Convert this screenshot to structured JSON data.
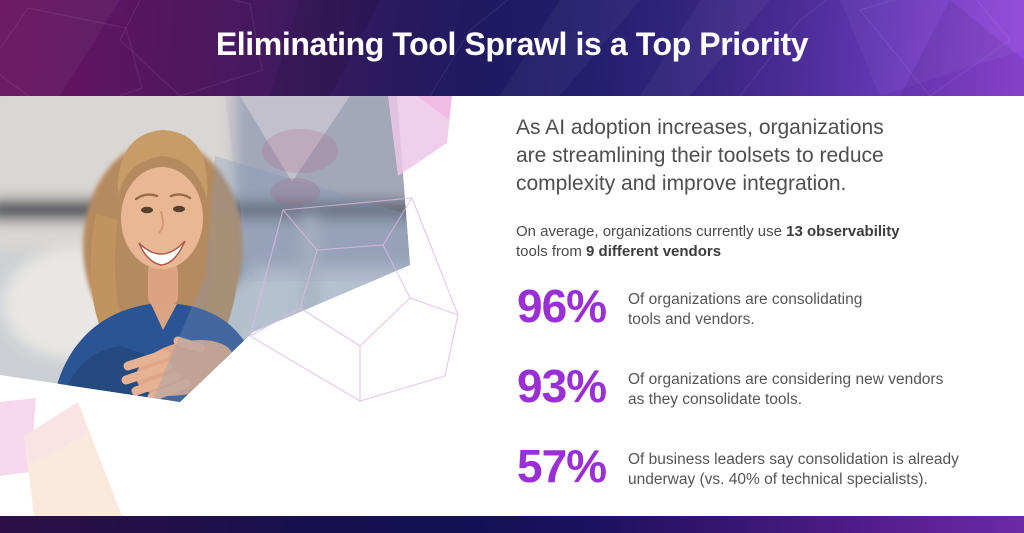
{
  "header": {
    "title": "Eliminating Tool Sprawl is a Top Priority"
  },
  "photo": {
    "alt": "Smiling woman with shoulder-length light brown hair wearing a blue top, blurred office window background with polygonal overlay"
  },
  "content": {
    "intro_lines": [
      "As AI adoption increases, organizations",
      "are streamlining their toolsets to reduce",
      "complexity and improve integration."
    ],
    "average_line1": [
      {
        "t": "On average, organizations currently use ",
        "b": false
      },
      {
        "t": "13 observability",
        "b": true
      }
    ],
    "average_line2": [
      {
        "t": "tools from ",
        "b": false
      },
      {
        "t": "9 different vendors",
        "b": true
      }
    ],
    "stats": [
      {
        "value": "96%",
        "lines": [
          "Of organizations are consolidating",
          "tools and vendors."
        ]
      },
      {
        "value": "93%",
        "lines": [
          "Of organizations are considering new vendors",
          "as they consolidate tools."
        ]
      },
      {
        "value": "57%",
        "lines": [
          "Of business leaders say consolidation is already",
          "underway (vs. 40% of technical specialists)."
        ]
      }
    ]
  },
  "colors": {
    "accent_purple": "#9B2FD6",
    "body_text": "#4E4E4E",
    "stat_desc_text": "#555555",
    "header_gradient_left": "#67125E",
    "header_gradient_middle": "#1F1A61",
    "header_gradient_right": "#9147DB",
    "bottom_bar_left": "#2E1047",
    "bottom_bar_middle": "#141052",
    "bottom_bar_right": "#6B2AA4",
    "wireframe_line": "#DDB9E6",
    "corner_pink": "#F6D7EC",
    "corner_peach": "#FCE9DE"
  }
}
